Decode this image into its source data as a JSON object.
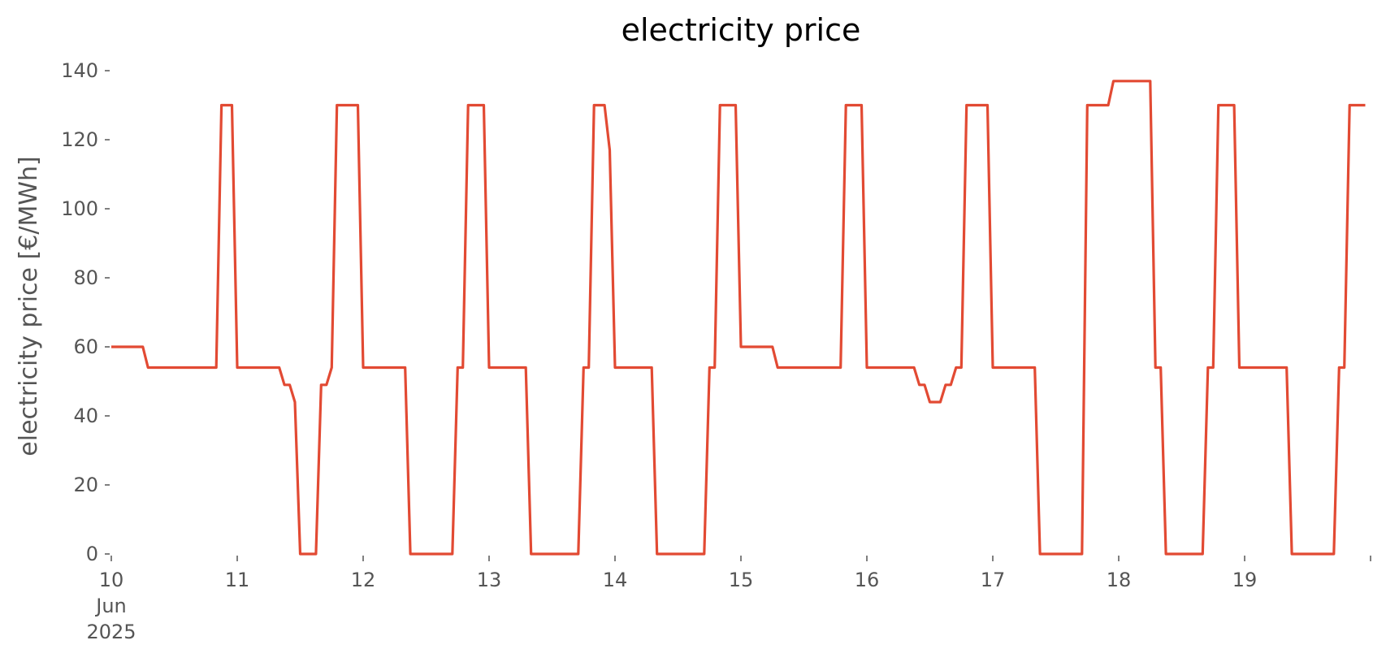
{
  "chart_data": {
    "type": "line",
    "title": "electricity price",
    "xlabel": "",
    "ylabel": "electricity price [€/MWh]",
    "ylim": [
      0,
      140
    ],
    "xlim": [
      "2025-06-10 00:00",
      "2025-06-19 23:00"
    ],
    "y_ticks": [
      0,
      20,
      40,
      60,
      80,
      100,
      120,
      140
    ],
    "x_ticks": [
      {
        "value": "2025-06-10 00:00",
        "label": "10",
        "sublabels": [
          "Jun",
          "2025"
        ]
      },
      {
        "value": "2025-06-11 00:00",
        "label": "11"
      },
      {
        "value": "2025-06-12 00:00",
        "label": "12"
      },
      {
        "value": "2025-06-13 00:00",
        "label": "13"
      },
      {
        "value": "2025-06-14 00:00",
        "label": "14"
      },
      {
        "value": "2025-06-15 00:00",
        "label": "15"
      },
      {
        "value": "2025-06-16 00:00",
        "label": "16"
      },
      {
        "value": "2025-06-17 00:00",
        "label": "17"
      },
      {
        "value": "2025-06-18 00:00",
        "label": "18"
      },
      {
        "value": "2025-06-19 00:00",
        "label": "19"
      },
      {
        "value": "2025-06-20 00:00",
        "label": ""
      }
    ],
    "grid": false,
    "series": [
      {
        "color": "#e24a33",
        "points": [
          [
            "2025-06-10 00:00",
            60
          ],
          [
            "2025-06-10 06:00",
            60
          ],
          [
            "2025-06-10 07:00",
            54
          ],
          [
            "2025-06-10 20:00",
            54
          ],
          [
            "2025-06-10 21:00",
            130
          ],
          [
            "2025-06-10 23:00",
            130
          ],
          [
            "2025-06-11 00:00",
            54
          ],
          [
            "2025-06-11 08:00",
            54
          ],
          [
            "2025-06-11 09:00",
            49
          ],
          [
            "2025-06-11 10:00",
            49
          ],
          [
            "2025-06-11 11:00",
            44
          ],
          [
            "2025-06-11 12:00",
            0
          ],
          [
            "2025-06-11 15:00",
            0
          ],
          [
            "2025-06-11 16:00",
            49
          ],
          [
            "2025-06-11 17:00",
            49
          ],
          [
            "2025-06-11 18:00",
            54
          ],
          [
            "2025-06-11 19:00",
            130
          ],
          [
            "2025-06-11 23:00",
            130
          ],
          [
            "2025-06-12 00:00",
            54
          ],
          [
            "2025-06-12 08:00",
            54
          ],
          [
            "2025-06-12 09:00",
            0
          ],
          [
            "2025-06-12 17:00",
            0
          ],
          [
            "2025-06-12 18:00",
            54
          ],
          [
            "2025-06-12 19:00",
            54
          ],
          [
            "2025-06-12 20:00",
            130
          ],
          [
            "2025-06-12 23:00",
            130
          ],
          [
            "2025-06-13 00:00",
            54
          ],
          [
            "2025-06-13 07:00",
            54
          ],
          [
            "2025-06-13 08:00",
            0
          ],
          [
            "2025-06-13 17:00",
            0
          ],
          [
            "2025-06-13 18:00",
            54
          ],
          [
            "2025-06-13 19:00",
            54
          ],
          [
            "2025-06-13 20:00",
            130
          ],
          [
            "2025-06-13 22:00",
            130
          ],
          [
            "2025-06-13 23:00",
            117
          ],
          [
            "2025-06-14 00:00",
            54
          ],
          [
            "2025-06-14 07:00",
            54
          ],
          [
            "2025-06-14 08:00",
            0
          ],
          [
            "2025-06-14 17:00",
            0
          ],
          [
            "2025-06-14 18:00",
            54
          ],
          [
            "2025-06-14 19:00",
            54
          ],
          [
            "2025-06-14 20:00",
            130
          ],
          [
            "2025-06-14 23:00",
            130
          ],
          [
            "2025-06-15 00:00",
            60
          ],
          [
            "2025-06-15 06:00",
            60
          ],
          [
            "2025-06-15 07:00",
            54
          ],
          [
            "2025-06-15 19:00",
            54
          ],
          [
            "2025-06-15 20:00",
            130
          ],
          [
            "2025-06-15 23:00",
            130
          ],
          [
            "2025-06-16 00:00",
            54
          ],
          [
            "2025-06-16 09:00",
            54
          ],
          [
            "2025-06-16 10:00",
            49
          ],
          [
            "2025-06-16 11:00",
            49
          ],
          [
            "2025-06-16 12:00",
            44
          ],
          [
            "2025-06-16 14:00",
            44
          ],
          [
            "2025-06-16 15:00",
            49
          ],
          [
            "2025-06-16 16:00",
            49
          ],
          [
            "2025-06-16 17:00",
            54
          ],
          [
            "2025-06-16 18:00",
            54
          ],
          [
            "2025-06-16 19:00",
            130
          ],
          [
            "2025-06-16 23:00",
            130
          ],
          [
            "2025-06-17 00:00",
            54
          ],
          [
            "2025-06-17 08:00",
            54
          ],
          [
            "2025-06-17 09:00",
            0
          ],
          [
            "2025-06-17 17:00",
            0
          ],
          [
            "2025-06-17 18:00",
            130
          ],
          [
            "2025-06-17 22:00",
            130
          ],
          [
            "2025-06-17 23:00",
            137
          ],
          [
            "2025-06-18 06:00",
            137
          ],
          [
            "2025-06-18 07:00",
            54
          ],
          [
            "2025-06-18 08:00",
            54
          ],
          [
            "2025-06-18 09:00",
            0
          ],
          [
            "2025-06-18 16:00",
            0
          ],
          [
            "2025-06-18 17:00",
            54
          ],
          [
            "2025-06-18 18:00",
            54
          ],
          [
            "2025-06-18 19:00",
            130
          ],
          [
            "2025-06-18 22:00",
            130
          ],
          [
            "2025-06-18 23:00",
            54
          ],
          [
            "2025-06-19 08:00",
            54
          ],
          [
            "2025-06-19 09:00",
            0
          ],
          [
            "2025-06-19 17:00",
            0
          ],
          [
            "2025-06-19 18:00",
            54
          ],
          [
            "2025-06-19 19:00",
            54
          ],
          [
            "2025-06-19 20:00",
            130
          ],
          [
            "2025-06-19 23:00",
            130
          ]
        ]
      }
    ]
  }
}
